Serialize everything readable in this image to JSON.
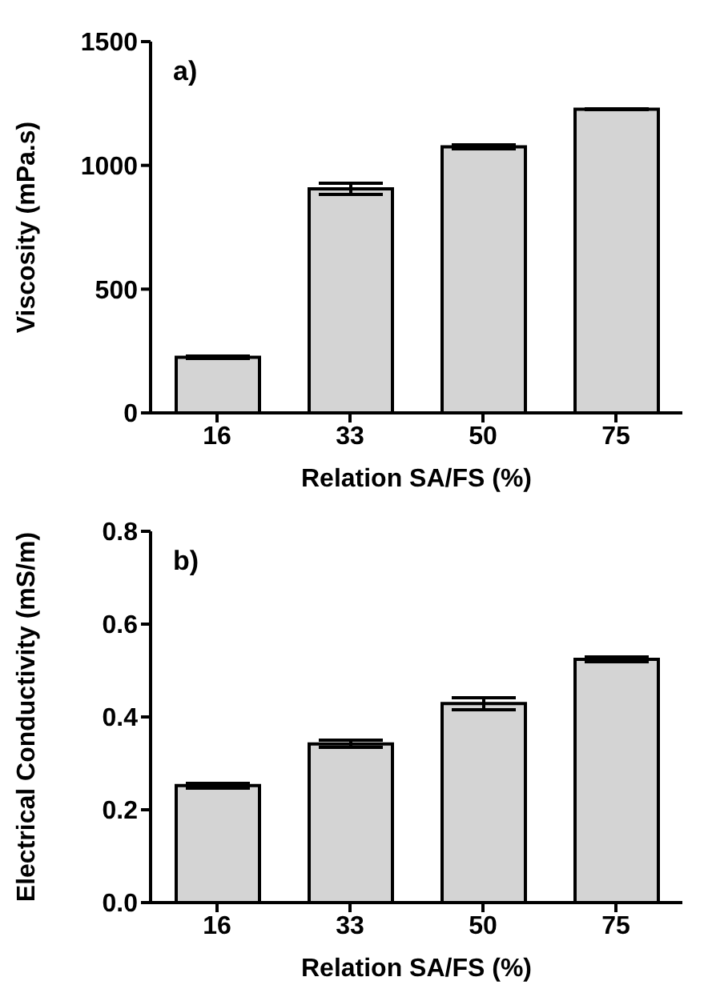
{
  "chart_data": [
    {
      "type": "bar",
      "annotations": [
        "a)"
      ],
      "xlabel": "Relation SA/FS (%)",
      "ylabel": "Viscosity (mPa.s)",
      "categories": [
        "16",
        "33",
        "50",
        "75"
      ],
      "values": [
        225,
        905,
        1075,
        1227
      ],
      "errors": [
        5,
        24,
        8,
        3
      ],
      "color": "#d4d4d4",
      "ylim": [
        0,
        1500
      ],
      "yticks": [
        0,
        500,
        1000,
        1500
      ],
      "grid": false,
      "legend": false
    },
    {
      "type": "bar",
      "annotations": [
        "b)"
      ],
      "xlabel": "Relation SA/FS (%)",
      "ylabel": "Electrical Conductivity (mS/m)",
      "categories": [
        "16",
        "33",
        "50",
        "75"
      ],
      "values": [
        0.252,
        0.342,
        0.429,
        0.524
      ],
      "errors": [
        0.005,
        0.008,
        0.013,
        0.005
      ],
      "color": "#d4d4d4",
      "ylim": [
        0,
        0.8
      ],
      "yticks": [
        {
          "value": 0,
          "label": "0.0"
        },
        0.2,
        0.4,
        0.6,
        0.8
      ],
      "grid": false,
      "legend": false
    }
  ]
}
